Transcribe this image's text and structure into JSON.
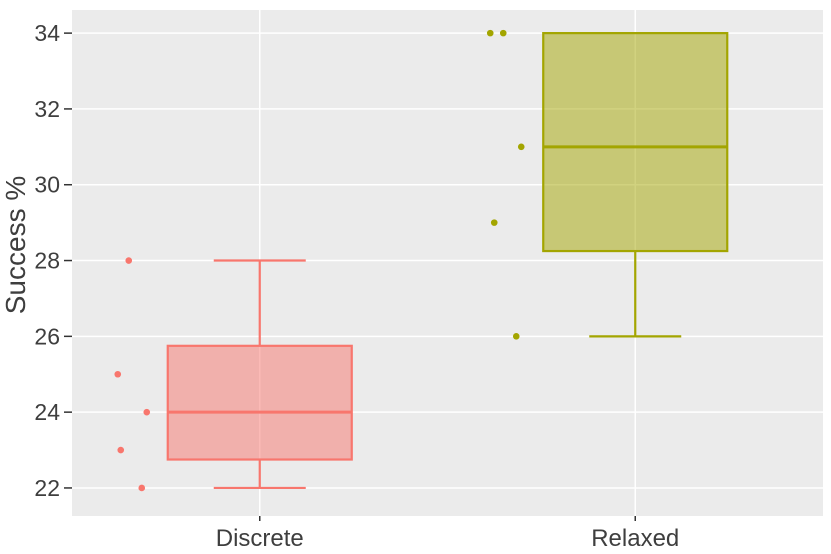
{
  "chart_data": {
    "type": "boxplot",
    "title": "",
    "xlabel": "",
    "ylabel": "Success %",
    "categories": [
      "Discrete",
      "Relaxed"
    ],
    "yticks": [
      22,
      24,
      26,
      28,
      30,
      32,
      34
    ],
    "ylim": [
      21.26,
      34.61
    ],
    "grid": "major-only, white gridlines on gray panel, vertical gridline at each category center",
    "legend_position": "none",
    "series": [
      {
        "name": "Discrete",
        "color": "#F8766D",
        "fill_opacity": 0.5,
        "box": {
          "lower_whisker": 22,
          "q1": 22.75,
          "median": 24,
          "q3": 25.75,
          "upper_whisker": 28
        },
        "points": [
          {
            "value": 28,
            "dx": -131
          },
          {
            "value": 25,
            "dx": -142
          },
          {
            "value": 24,
            "dx": -113
          },
          {
            "value": 23,
            "dx": -139
          },
          {
            "value": 22,
            "dx": -118
          }
        ]
      },
      {
        "name": "Relaxed",
        "color": "#A3A500",
        "fill_opacity": 0.5,
        "box": {
          "lower_whisker": 26,
          "q1": 28.25,
          "median": 31,
          "q3": 34,
          "upper_whisker": 34
        },
        "points": [
          {
            "value": 34,
            "dx": -145
          },
          {
            "value": 34,
            "dx": -132
          },
          {
            "value": 31,
            "dx": -114
          },
          {
            "value": 29,
            "dx": -141
          },
          {
            "value": 26,
            "dx": -119
          }
        ]
      }
    ],
    "style": {
      "background": "#FFFFFF",
      "panel_bg": "#EBEBEB",
      "grid_color": "#FFFFFF",
      "tick_color": "#333333",
      "text_color": "#3E3E3E",
      "accent_discrete": "#F8766D",
      "accent_relaxed": "#A3A500"
    }
  }
}
